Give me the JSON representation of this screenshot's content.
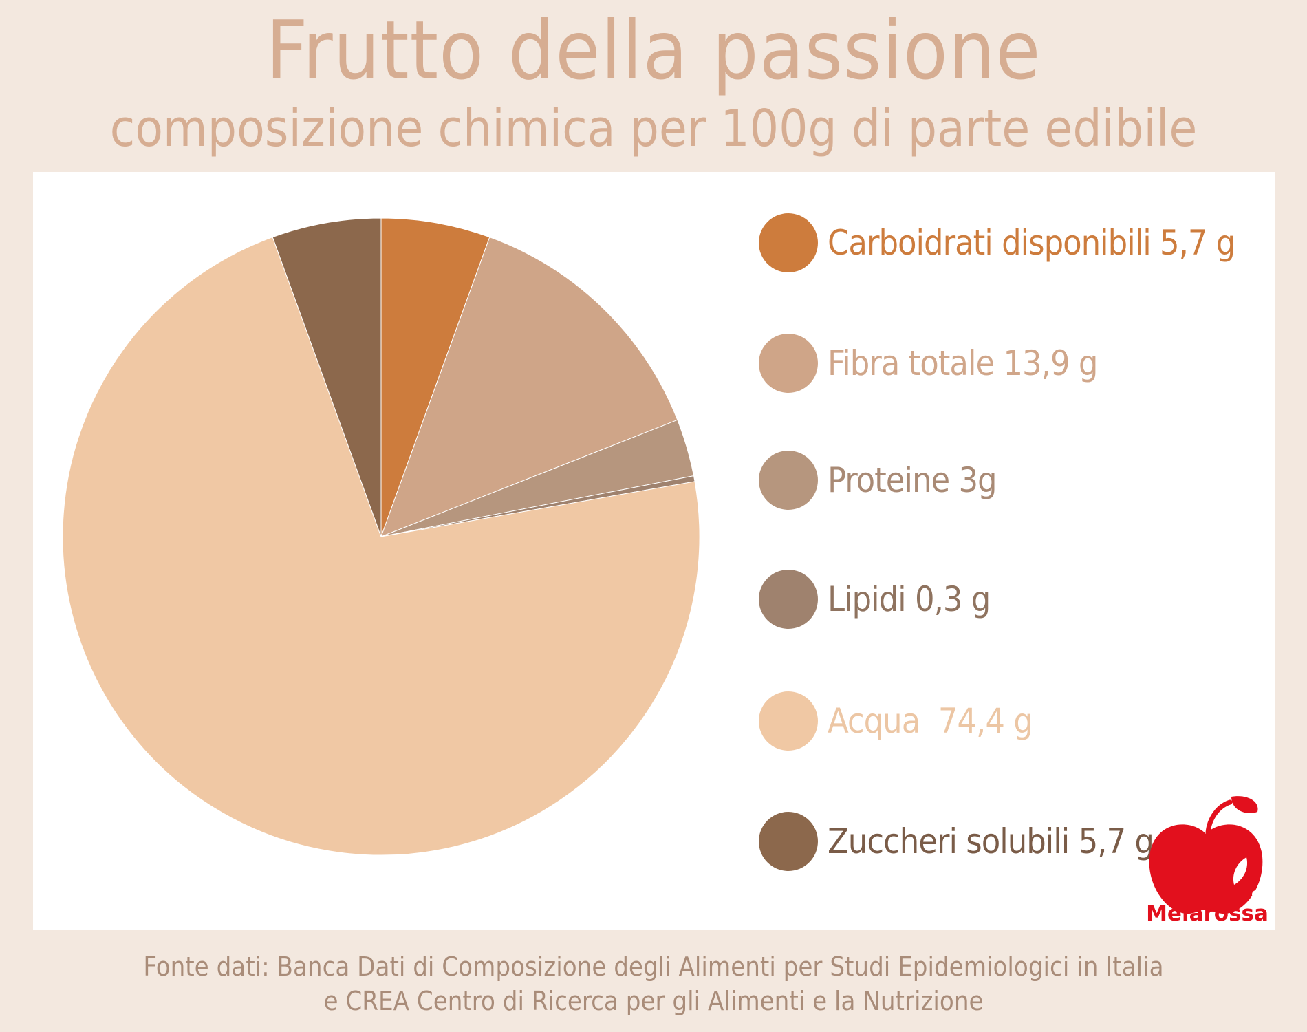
{
  "header": {
    "title": "Frutto della passione",
    "subtitle": "composizione chimica per 100g di parte edibile"
  },
  "chart_data": {
    "type": "pie",
    "title": "Frutto della passione",
    "subtitle": "composizione chimica per 100g di parte edibile",
    "unit": "g",
    "legend_position": "right",
    "slices": [
      {
        "label": "Carboidrati disponibili 5,7 g",
        "value": 5.7,
        "color": "#cd7c3d",
        "label_color": "#cd7c3d"
      },
      {
        "label": "Fibra totale 13,9 g",
        "value": 13.9,
        "color": "#cfa588",
        "label_color": "#d0a68a"
      },
      {
        "label": "Proteine 3g",
        "value": 3.0,
        "color": "#b6967e",
        "label_color": "#a98a75"
      },
      {
        "label": "Lipidi 0,3 g",
        "value": 0.3,
        "color": "#9f826e",
        "label_color": "#8f735f"
      },
      {
        "label": "Acqua  74,4 g",
        "value": 74.4,
        "color": "#f0c8a4",
        "label_color": "#ecc6a4"
      },
      {
        "label": "Zuccheri solubili 5,7 g",
        "value": 5.7,
        "color": "#8c684c",
        "label_color": "#7a5c48"
      }
    ]
  },
  "brand": {
    "name": "Melarossa",
    "color": "#e2101d"
  },
  "source": {
    "line1": "Fonte dati: Banca Dati di Composizione degli Alimenti per Studi Epidemiologici in Italia",
    "line2": "e CREA Centro di Ricerca per gli Alimenti e la Nutrizione"
  }
}
